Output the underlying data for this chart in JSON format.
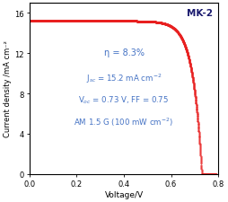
{
  "title": "MK-2",
  "xlabel": "Voltage/V",
  "ylabel": "Current density /mA cm⁻²",
  "xlim": [
    0,
    0.8
  ],
  "ylim": [
    0,
    17
  ],
  "xticks": [
    0,
    0.2,
    0.4,
    0.6,
    0.8
  ],
  "yticks": [
    0,
    4,
    8,
    12,
    16
  ],
  "Jsc": 15.2,
  "Voc": 0.73,
  "FF": 0.75,
  "eta": 8.3,
  "curve_color": "#e82020",
  "annotation_color": "#4472c4",
  "annotation_eta": "η = 8.3%",
  "annotation_jsc": "J$_{sc}$ = 15.2 mA cm$^{-2}$",
  "annotation_voc": "V$_{oc}$ = 0.73 V, FF = 0.75",
  "annotation_am": "AM 1.5 G (100 mW cm$^{-2}$)",
  "figsize": [
    2.54,
    2.26
  ],
  "dpi": 100
}
